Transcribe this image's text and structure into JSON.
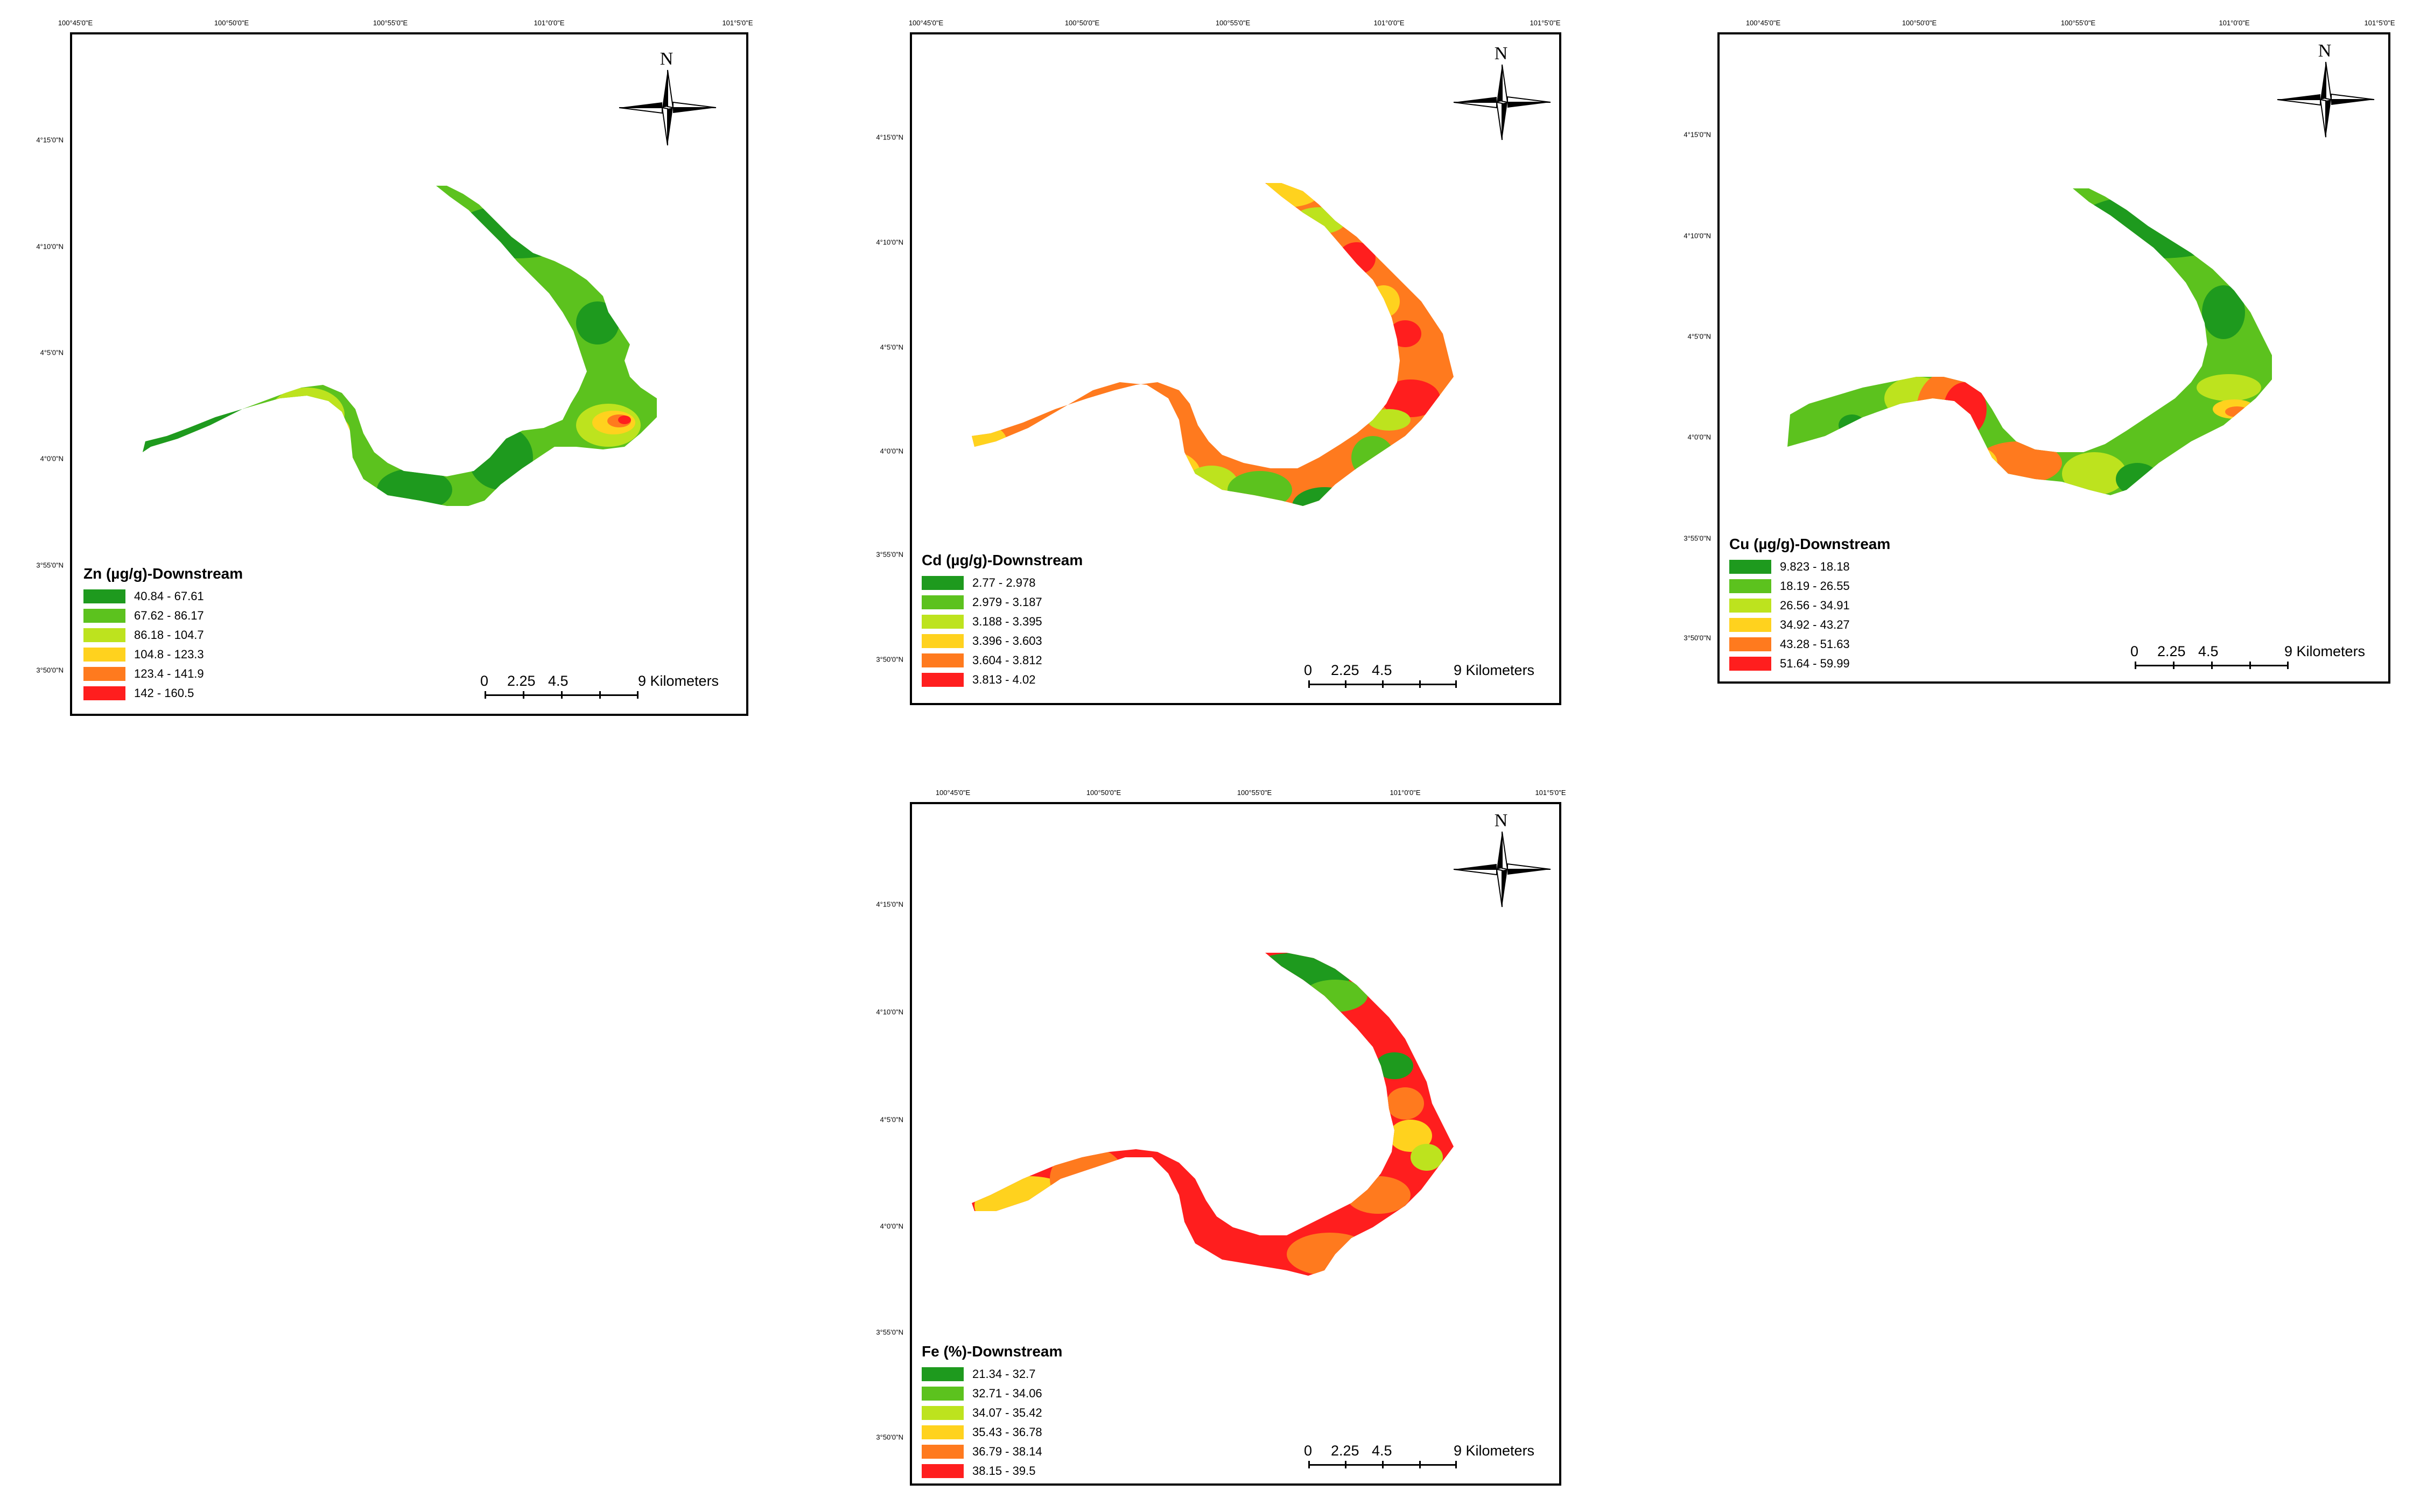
{
  "figure": {
    "lon_labels_a": [
      "100°45'0\"E",
      "100°50'0\"E",
      "100°55'0\"E",
      "101°0'0\"E",
      "101°5'0\"E"
    ],
    "lat_labels_a": [
      "4°15'0\"N",
      "4°10'0\"N",
      "4°5'0\"N",
      "4°0'0\"N",
      "3°55'0\"N",
      "3°50'0\"N"
    ],
    "compass_letter": "N",
    "scale_text": {
      "zero": "0",
      "first": "2.25",
      "second": "4.5",
      "last": "9 Kilometers"
    }
  },
  "panels": [
    {
      "title": "Zn (µg/g)-Downstream",
      "legend": [
        {
          "label": "40.84 - 67.61",
          "color": "#1e9a1e"
        },
        {
          "label": "67.62 - 86.17",
          "color": "#5cc21e"
        },
        {
          "label": "86.18 - 104.7",
          "color": "#bde31e"
        },
        {
          "label": "104.8 - 123.3",
          "color": "#ffd21e"
        },
        {
          "label": "123.4 - 141.9",
          "color": "#ff7a1e"
        },
        {
          "label": "142 - 160.5",
          "color": "#ff1e1e"
        }
      ]
    },
    {
      "title": "Cd (µg/g)-Downstream",
      "legend": [
        {
          "label": "2.77 - 2.978",
          "color": "#1e9a1e"
        },
        {
          "label": "2.979 - 3.187",
          "color": "#5cc21e"
        },
        {
          "label": "3.188 - 3.395",
          "color": "#bde31e"
        },
        {
          "label": "3.396 - 3.603",
          "color": "#ffd21e"
        },
        {
          "label": "3.604 - 3.812",
          "color": "#ff7a1e"
        },
        {
          "label": "3.813 - 4.02",
          "color": "#ff1e1e"
        }
      ]
    },
    {
      "title": "Cu (µg/g)-Downstream",
      "legend": [
        {
          "label": "9.823 - 18.18",
          "color": "#1e9a1e"
        },
        {
          "label": "18.19 - 26.55",
          "color": "#5cc21e"
        },
        {
          "label": "26.56 - 34.91",
          "color": "#bde31e"
        },
        {
          "label": "34.92 - 43.27",
          "color": "#ffd21e"
        },
        {
          "label": "43.28 - 51.63",
          "color": "#ff7a1e"
        },
        {
          "label": "51.64 - 59.99",
          "color": "#ff1e1e"
        }
      ]
    },
    {
      "title": "Fe (%)-Downstream",
      "legend": [
        {
          "label": "21.34 - 32.7",
          "color": "#1e9a1e"
        },
        {
          "label": "32.71 - 34.06",
          "color": "#5cc21e"
        },
        {
          "label": "34.07 - 35.42",
          "color": "#bde31e"
        },
        {
          "label": "35.43 - 36.78",
          "color": "#ffd21e"
        },
        {
          "label": "36.79 - 38.14",
          "color": "#ff7a1e"
        },
        {
          "label": "38.15 - 39.5",
          "color": "#ff1e1e"
        }
      ]
    }
  ]
}
